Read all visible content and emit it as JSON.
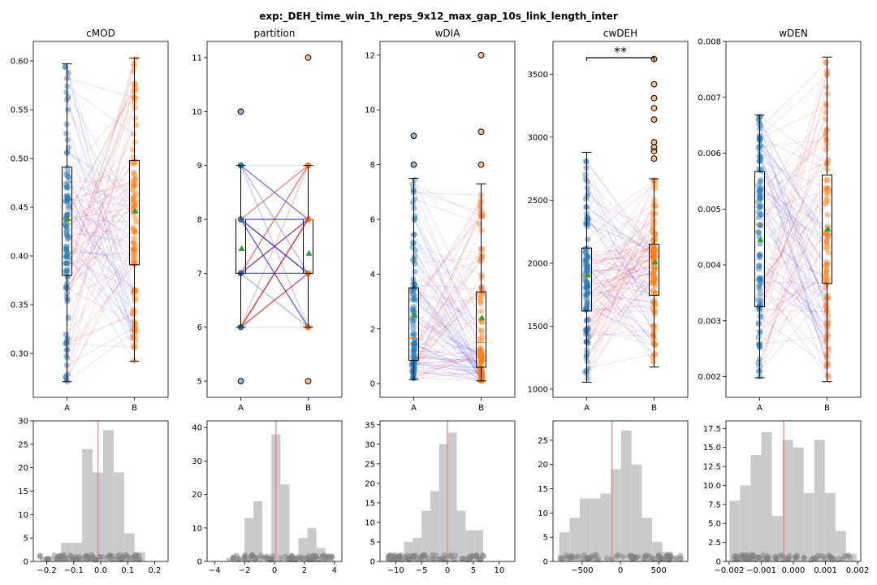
{
  "figure": {
    "title": "exp:_DEH_time_win_1h_reps_9x12_max_gap_10s_link_length_inter"
  },
  "colors": {
    "groupA": "#1f77b4",
    "groupB": "#ff7f0e",
    "lineUp": "#e41a1c",
    "lineDown": "#3333dd",
    "mean": "#2ca02c",
    "median": "#ff7f0e",
    "hist": "#bbbbbb",
    "zero": "#e88080",
    "dots": "#808080"
  },
  "chart_data": [
    {
      "type": "box",
      "title": "cMOD",
      "categories": [
        "A",
        "B"
      ],
      "ylim": [
        0.255,
        0.62
      ],
      "yticks": [
        0.3,
        0.35,
        0.4,
        0.45,
        0.5,
        0.55,
        0.6
      ],
      "tick_labels": [
        "0.30",
        "0.35",
        "0.40",
        "0.45",
        "0.50",
        "0.55",
        "0.60"
      ],
      "boxes": [
        {
          "name": "A",
          "whislo": 0.271,
          "q1": 0.38,
          "med": 0.433,
          "q3": 0.491,
          "whishi": 0.597,
          "mean": 0.438
        },
        {
          "name": "B",
          "whislo": 0.292,
          "q1": 0.391,
          "med": 0.456,
          "q3": 0.498,
          "whishi": 0.603,
          "mean": 0.446
        }
      ],
      "significance": ""
    },
    {
      "type": "box",
      "title": "partition",
      "categories": [
        "A",
        "B"
      ],
      "ylim": [
        4.7,
        11.3
      ],
      "yticks": [
        5,
        6,
        7,
        8,
        9,
        10,
        11
      ],
      "tick_labels": [
        "5",
        "6",
        "7",
        "8",
        "9",
        "10",
        "11"
      ],
      "boxes": [
        {
          "name": "A",
          "whislo": 6,
          "q1": 7,
          "med": 8,
          "q3": 8,
          "whishi": 9,
          "mean": 7.46,
          "outliers": [
            5,
            10
          ]
        },
        {
          "name": "B",
          "whislo": 6,
          "q1": 7,
          "med": 8,
          "q3": 8,
          "whishi": 9,
          "mean": 7.37,
          "outliers": [
            5,
            11
          ]
        }
      ],
      "significance": ""
    },
    {
      "type": "box",
      "title": "wDIA",
      "categories": [
        "A",
        "B"
      ],
      "ylim": [
        -0.5,
        12.5
      ],
      "yticks": [
        0,
        2,
        4,
        6,
        8,
        10,
        12
      ],
      "tick_labels": [
        "0",
        "2",
        "4",
        "6",
        "8",
        "10",
        "12"
      ],
      "boxes": [
        {
          "name": "A",
          "whislo": 0.15,
          "q1": 0.85,
          "med": 1.65,
          "q3": 3.5,
          "whishi": 7.5,
          "mean": 2.5,
          "outliers": [
            8.0,
            9.05
          ]
        },
        {
          "name": "B",
          "whislo": 0.1,
          "q1": 0.6,
          "med": 1.5,
          "q3": 3.35,
          "whishi": 7.3,
          "mean": 2.4,
          "outliers": [
            8.0,
            9.2,
            12.0
          ]
        }
      ],
      "significance": ""
    },
    {
      "type": "box",
      "title": "cwDEH",
      "categories": [
        "A",
        "B"
      ],
      "ylim": [
        935,
        3760
      ],
      "yticks": [
        1000,
        1500,
        2000,
        2500,
        3000,
        3500
      ],
      "tick_labels": [
        "1000",
        "1500",
        "2000",
        "2500",
        "3000",
        "3500"
      ],
      "boxes": [
        {
          "name": "A",
          "whislo": 1055,
          "q1": 1620,
          "med": 1900,
          "q3": 2120,
          "whishi": 2880,
          "mean": 1905
        },
        {
          "name": "B",
          "whislo": 1175,
          "q1": 1745,
          "med": 1960,
          "q3": 2150,
          "whishi": 2670,
          "mean": 2010,
          "outliers": [
            2830,
            2890,
            2920,
            2960,
            3140,
            3230,
            3310,
            3420,
            3620
          ]
        }
      ],
      "significance": "**"
    },
    {
      "type": "box",
      "title": "wDEN",
      "categories": [
        "A",
        "B"
      ],
      "ylim": [
        0.00163,
        0.008
      ],
      "yticks": [
        0.002,
        0.003,
        0.004,
        0.005,
        0.006,
        0.007,
        0.008
      ],
      "tick_labels": [
        "0.002",
        "0.003",
        "0.004",
        "0.005",
        "0.006",
        "0.007",
        "0.008"
      ],
      "boxes": [
        {
          "name": "A",
          "whislo": 0.00198,
          "q1": 0.00325,
          "med": 0.00473,
          "q3": 0.00567,
          "whishi": 0.00668,
          "mean": 0.00445
        },
        {
          "name": "B",
          "whislo": 0.00191,
          "q1": 0.00367,
          "med": 0.00455,
          "q3": 0.00561,
          "whishi": 0.00772,
          "mean": 0.00464
        }
      ],
      "significance": ""
    },
    {
      "type": "histogram",
      "title": "",
      "xlim": [
        -0.25,
        0.25
      ],
      "ylim": [
        0,
        30
      ],
      "xticks": [
        -0.2,
        -0.1,
        0.0,
        0.1,
        0.2
      ],
      "xtick_labels": [
        "−0.2",
        "−0.1",
        "0.0",
        "0.1",
        "0.2"
      ],
      "yticks": [
        0,
        5,
        10,
        15,
        20,
        25,
        30
      ],
      "ytick_labels": [
        "0",
        "5",
        "10",
        "15",
        "20",
        "25",
        "30"
      ],
      "bin_edges": [
        -0.225,
        -0.186,
        -0.147,
        -0.108,
        -0.069,
        -0.03,
        0.009,
        0.048,
        0.087,
        0.126,
        0.165
      ],
      "counts": [
        1,
        1,
        4,
        4,
        24,
        19,
        28,
        19,
        6,
        2
      ],
      "zero_line": -0.01,
      "dots_range": [
        -0.235,
        0.16
      ]
    },
    {
      "type": "histogram",
      "title": "",
      "xlim": [
        -4.5,
        4.5
      ],
      "ylim": [
        0,
        42
      ],
      "xticks": [
        -4,
        -2,
        0,
        2,
        4
      ],
      "xtick_labels": [
        "−4",
        "−2",
        "0",
        "2",
        "4"
      ],
      "yticks": [
        0,
        10,
        20,
        30,
        40
      ],
      "ytick_labels": [
        "0",
        "10",
        "20",
        "30",
        "40"
      ],
      "bin_edges": [
        -3.2,
        -2.6,
        -2.0,
        -1.4,
        -0.8,
        -0.2,
        0.4,
        1.0,
        1.6,
        2.2,
        2.8,
        3.4,
        4.0
      ],
      "counts": [
        1,
        1,
        13,
        18,
        0,
        38,
        23,
        0,
        7,
        10,
        4,
        1
      ],
      "zero_line": 0.1,
      "dots_range": [
        -3.0,
        4.0
      ]
    },
    {
      "type": "histogram",
      "title": "",
      "xlim": [
        -13,
        13
      ],
      "ylim": [
        0,
        36
      ],
      "xticks": [
        -10,
        -5,
        0,
        5,
        10
      ],
      "xtick_labels": [
        "−10",
        "−5",
        "0",
        "5",
        "10"
      ],
      "yticks": [
        0,
        5,
        10,
        15,
        20,
        25,
        30,
        35
      ],
      "ytick_labels": [
        "0",
        "5",
        "10",
        "15",
        "20",
        "25",
        "30",
        "35"
      ],
      "bin_edges": [
        -11.8,
        -10.1,
        -8.4,
        -6.7,
        -5.0,
        -3.3,
        -1.6,
        0.1,
        1.8,
        3.5,
        5.2,
        6.9
      ],
      "counts": [
        2,
        1,
        5,
        6,
        13,
        18,
        30,
        33,
        13,
        8,
        8
      ],
      "zero_line": 0.0,
      "dots_range": [
        -11.5,
        7.0
      ]
    },
    {
      "type": "histogram",
      "title": "",
      "xlim": [
        -880,
        880
      ],
      "ylim": [
        0,
        29
      ],
      "xticks": [
        -500,
        0,
        500
      ],
      "xtick_labels": [
        "−500",
        "0",
        "500"
      ],
      "yticks": [
        0,
        5,
        10,
        15,
        20,
        25
      ],
      "ytick_labels": [
        "0",
        "5",
        "10",
        "15",
        "20",
        "25"
      ],
      "bin_edges": [
        -800,
        -665,
        -530,
        -395,
        -260,
        -125,
        10,
        145,
        280,
        415,
        550,
        685,
        820
      ],
      "counts": [
        6,
        9,
        13,
        13,
        14,
        19,
        27,
        20,
        9,
        4,
        2,
        1
      ],
      "zero_line": -110,
      "dots_range": [
        -790,
        790
      ]
    },
    {
      "type": "histogram",
      "title": "",
      "xlim": [
        -0.0021,
        0.0021
      ],
      "ylim": [
        0,
        18.5
      ],
      "xticks": [
        -0.002,
        -0.001,
        0.0,
        0.001,
        0.002
      ],
      "xtick_labels": [
        "−0.002",
        "−0.001",
        "0.000",
        "0.001",
        "0.002"
      ],
      "yticks": [
        0,
        2.5,
        5.0,
        7.5,
        10.0,
        12.5,
        15.0,
        17.5
      ],
      "ytick_labels": [
        "0",
        "2.5",
        "5.0",
        "7.5",
        "10.0",
        "12.5",
        "15.0",
        "17.5"
      ],
      "bin_edges": [
        -0.00199,
        -0.00166,
        -0.00133,
        -0.001,
        -0.00067,
        -0.00034,
        -1e-05,
        0.00032,
        0.00065,
        0.00098,
        0.00131,
        0.00164,
        0.00197
      ],
      "counts": [
        8,
        10,
        14,
        17,
        6,
        16,
        15,
        9,
        16,
        9,
        4,
        1
      ],
      "zero_line": -0.0003,
      "dots_range": [
        -0.00195,
        0.0018
      ]
    }
  ]
}
